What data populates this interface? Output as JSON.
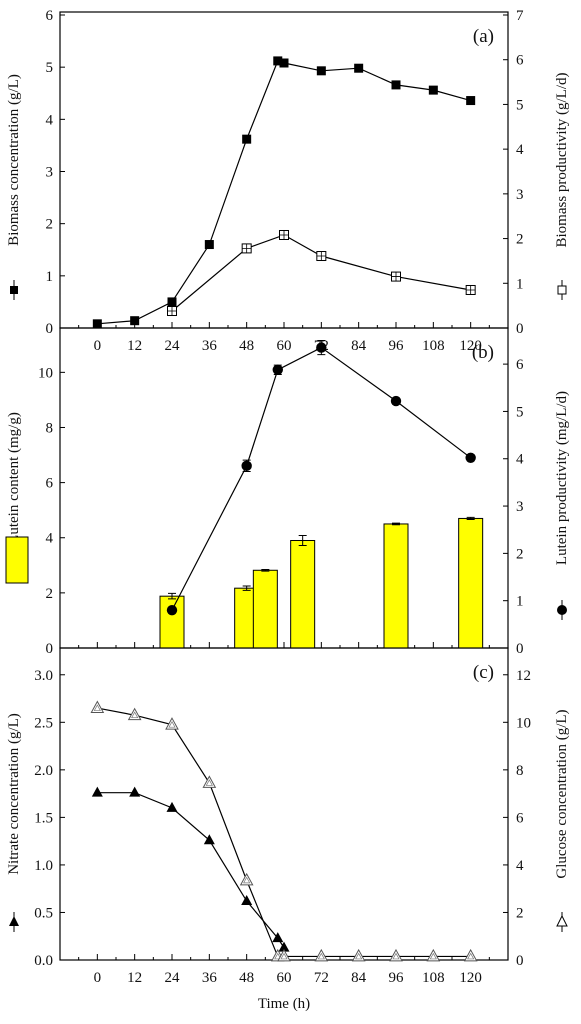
{
  "chart_data": [
    {
      "type": "line",
      "panel_label": "(a)",
      "x": [
        0,
        12,
        24,
        36,
        48,
        58,
        60,
        72,
        84,
        96,
        108,
        120
      ],
      "xlim": [
        -12,
        132
      ],
      "xticks": [
        "0",
        "12",
        "24",
        "36",
        "48",
        "60",
        "72",
        "84",
        "96",
        "108",
        "120"
      ],
      "ylabel": "Biomass concentration (g/L)",
      "ylim": [
        0,
        6
      ],
      "yticks": [
        "0",
        "1",
        "2",
        "3",
        "4",
        "5",
        "6"
      ],
      "y2label": "Biomass productivity (g/L/d)",
      "y2lim": [
        0,
        7
      ],
      "y2ticks": [
        "0",
        "1",
        "2",
        "3",
        "4",
        "5",
        "6",
        "7"
      ],
      "series": [
        {
          "axis": "left",
          "marker": "filled-square",
          "x": [
            0,
            12,
            24,
            36,
            48,
            58,
            60,
            72,
            84,
            96,
            108,
            120
          ],
          "values": [
            0.08,
            0.14,
            0.5,
            1.6,
            3.62,
            5.12,
            5.08,
            4.93,
            4.98,
            4.66,
            4.56,
            4.36
          ]
        },
        {
          "axis": "right",
          "marker": "open-square",
          "x": [
            24,
            48,
            60,
            72,
            96,
            120
          ],
          "values": [
            0.38,
            1.78,
            2.08,
            1.61,
            1.15,
            0.85
          ]
        }
      ]
    },
    {
      "type": "bar+line",
      "panel_label": "(b)",
      "xlim": [
        -12,
        132
      ],
      "ylabel": "Lutein content (mg/g)",
      "ylim": [
        0,
        11.5
      ],
      "yticks": [
        "0",
        "2",
        "4",
        "6",
        "8",
        "10"
      ],
      "y2label": "Lutein productivity (mg/L/d)",
      "y2lim": [
        0,
        6.7
      ],
      "y2ticks": [
        "0",
        "1",
        "2",
        "3",
        "4",
        "5",
        "6"
      ],
      "bar_color": "#ffff00",
      "bars": {
        "axis": "left",
        "x": [
          24,
          48,
          54,
          66,
          96,
          120
        ],
        "values": [
          1.88,
          2.17,
          2.82,
          3.9,
          4.5,
          4.7
        ],
        "errors": [
          0.1,
          0.08,
          0.03,
          0.18,
          0.03,
          0.04
        ]
      },
      "series": [
        {
          "axis": "right",
          "marker": "filled-circle",
          "x": [
            24,
            48,
            58,
            72,
            96,
            120
          ],
          "values": [
            0.8,
            3.85,
            5.88,
            6.35,
            5.22,
            4.02
          ],
          "errors": [
            0,
            0.12,
            0.1,
            0.15,
            0,
            0
          ]
        }
      ]
    },
    {
      "type": "line",
      "panel_label": "(c)",
      "xlabel": "Time (h)",
      "xlim": [
        -12,
        132
      ],
      "xticks": [
        "0",
        "12",
        "24",
        "36",
        "48",
        "60",
        "72",
        "84",
        "96",
        "108",
        "120"
      ],
      "ylabel": "Nitrate concentration (g/L)",
      "ylim": [
        0,
        3.25
      ],
      "yticks": [
        "0.0",
        "0.5",
        "1.0",
        "1.5",
        "2.0",
        "2.5",
        "3.0"
      ],
      "y2label": "Glucose concentration (g/L)",
      "y2lim": [
        0,
        13
      ],
      "y2ticks": [
        "0",
        "2",
        "4",
        "6",
        "8",
        "10",
        "12"
      ],
      "series": [
        {
          "axis": "left",
          "marker": "filled-triangle",
          "x": [
            0,
            12,
            24,
            36,
            48,
            58,
            60
          ],
          "values": [
            1.76,
            1.76,
            1.6,
            1.26,
            0.62,
            0.23,
            0.13
          ]
        },
        {
          "axis": "right",
          "marker": "open-triangle",
          "x": [
            0,
            12,
            24,
            36,
            48,
            58,
            60,
            72,
            84,
            96,
            108,
            120
          ],
          "values": [
            10.6,
            10.3,
            9.9,
            7.45,
            3.35,
            0.15,
            0.15,
            0.15,
            0.15,
            0.15,
            0.15,
            0.15
          ]
        }
      ]
    }
  ]
}
